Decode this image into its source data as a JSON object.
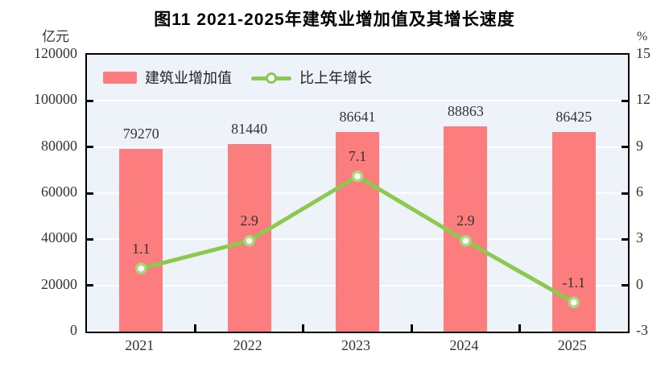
{
  "title": "图11  2021-2025年建筑业增加值及其增长速度",
  "left_axis": {
    "unit": "亿元",
    "min": 0,
    "max": 120000,
    "tick_step": 20000,
    "tick_labels": [
      "120000",
      "100000",
      "80000",
      "60000",
      "40000",
      "20000",
      "0"
    ]
  },
  "right_axis": {
    "unit": "%",
    "min": -3,
    "max": 15,
    "tick_step": 3,
    "tick_labels": [
      "15",
      "12",
      "9",
      "6",
      "3",
      "0",
      "-3"
    ]
  },
  "legend": {
    "items": [
      {
        "label": "建筑业增加值",
        "type": "bar"
      },
      {
        "label": "比上年增长",
        "type": "line"
      }
    ]
  },
  "colors": {
    "bar": "#FB7D7D",
    "line": "#8DC850",
    "marker_ring": "#ABD77E",
    "marker_fill": "#FFFFFF",
    "plot_bg": "#EDF3F8",
    "grid": "#FFFFFF",
    "axis_border": "#000000",
    "text": "#333333"
  },
  "chart_data": {
    "type": "bar",
    "subtype": "bar+line combo",
    "title": "图11  2021-2025年建筑业增加值及其增长速度",
    "categories": [
      "2021",
      "2022",
      "2023",
      "2024",
      "2025"
    ],
    "series": [
      {
        "name": "建筑业增加值",
        "type": "bar",
        "axis": "left",
        "unit": "亿元",
        "values": [
          79270,
          81440,
          86641,
          88863,
          86425
        ],
        "data_labels": [
          "79270",
          "81440",
          "86641",
          "88863",
          "86425"
        ]
      },
      {
        "name": "比上年增长",
        "type": "line",
        "axis": "right",
        "unit": "%",
        "values": [
          1.1,
          2.9,
          7.1,
          2.9,
          -1.1
        ],
        "data_labels": [
          "1.1",
          "2.9",
          "7.1",
          "2.9",
          "-1.1"
        ]
      }
    ],
    "left_ylim": [
      0,
      120000
    ],
    "right_ylim": [
      -3,
      15
    ],
    "grid": true,
    "grid_color": "white",
    "legend_position": "top-left-inside"
  }
}
